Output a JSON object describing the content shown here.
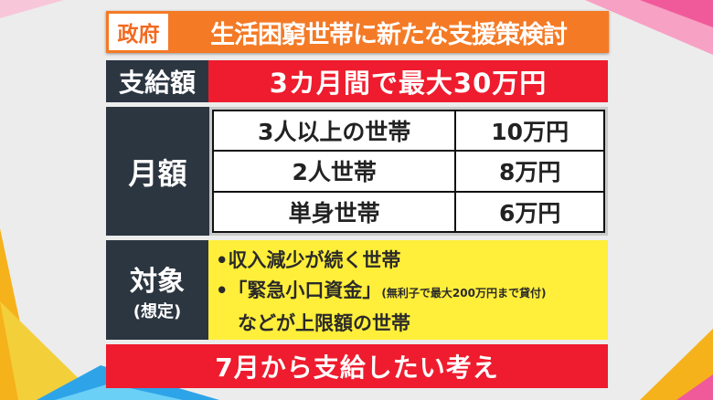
{
  "header": {
    "tag": "政府",
    "title": "生活困窮世帯に新たな支援策検討"
  },
  "amount": {
    "label": "支給額",
    "value": "3カ月間で最大30万円"
  },
  "monthly": {
    "label": "月額",
    "rows": [
      {
        "household": "3人以上の世帯",
        "amount": "10万円"
      },
      {
        "household": "2人世帯",
        "amount": "8万円"
      },
      {
        "household": "単身世帯",
        "amount": "6万円"
      }
    ]
  },
  "target": {
    "label": "対象",
    "sublabel": "(想定)",
    "items": [
      "•収入減少が続く世帯",
      "•「緊急小口資金」"
    ],
    "note": "(無利子で最大200万円まで貸付)",
    "continuation": "などが上限額の世帯"
  },
  "footer": {
    "text": "7月から支給したい考え"
  },
  "colors": {
    "orange": "#f47a26",
    "red": "#ee1c2e",
    "dark": "#2c3641",
    "yellow": "#ffee3a"
  }
}
